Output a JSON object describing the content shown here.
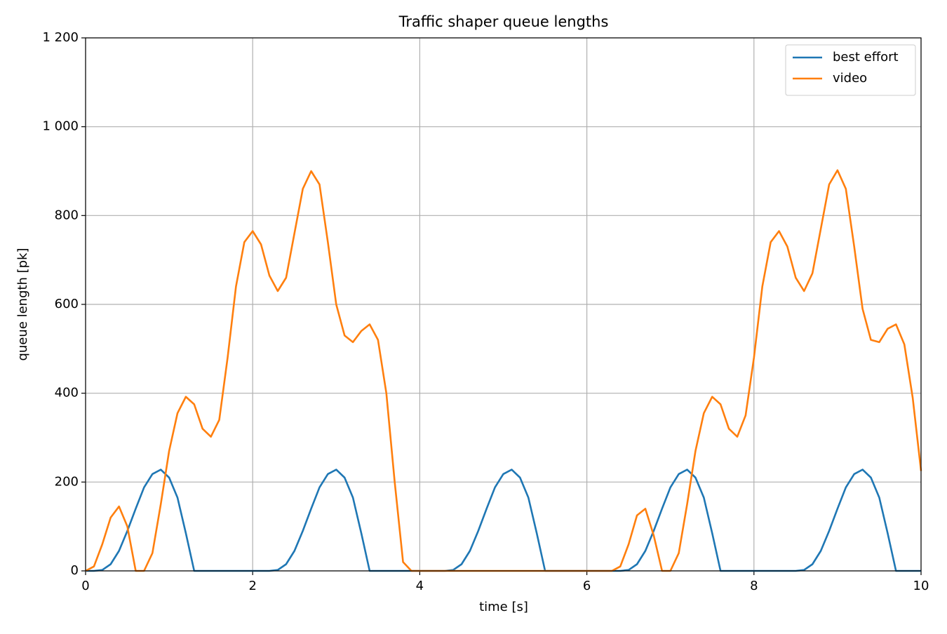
{
  "chart_data": {
    "type": "line",
    "title": "Traffic shaper queue lengths",
    "x_label": "time [s]",
    "y_label": "queue length [pk]",
    "x": [
      0,
      0.1,
      0.2,
      0.3,
      0.4,
      0.5,
      0.6,
      0.7,
      0.8,
      0.9,
      1,
      1.1,
      1.2,
      1.3,
      1.4,
      1.5,
      1.6,
      1.7,
      1.8,
      1.9,
      2,
      2.1,
      2.2,
      2.3,
      2.4,
      2.5,
      2.6,
      2.7,
      2.8,
      2.9,
      3,
      3.1,
      3.2,
      3.3,
      3.4,
      3.5,
      3.6,
      3.7,
      3.8,
      3.9,
      4,
      4.1,
      4.2,
      4.3,
      4.4,
      4.5,
      4.6,
      4.7,
      4.8,
      4.9,
      5,
      5.1,
      5.2,
      5.3,
      5.4,
      5.5,
      5.6,
      5.7,
      5.8,
      5.9,
      6,
      6.1,
      6.2,
      6.3,
      6.4,
      6.5,
      6.6,
      6.7,
      6.8,
      6.9,
      7,
      7.1,
      7.2,
      7.3,
      7.4,
      7.5,
      7.6,
      7.7,
      7.8,
      7.9,
      8,
      8.1,
      8.2,
      8.3,
      8.4,
      8.5,
      8.6,
      8.7,
      8.8,
      8.9,
      9,
      9.1,
      9.2,
      9.3,
      9.4,
      9.5,
      9.6,
      9.7,
      9.8,
      9.9,
      10
    ],
    "series": [
      {
        "name": "best effort",
        "color": "#1f77b4",
        "values": [
          0,
          0,
          2,
          15,
          45,
          90,
          140,
          188,
          218,
          228,
          210,
          165,
          85,
          0,
          0,
          0,
          0,
          0,
          0,
          0,
          0,
          0,
          0,
          2,
          15,
          45,
          90,
          140,
          188,
          218,
          228,
          210,
          165,
          85,
          0,
          0,
          0,
          0,
          0,
          0,
          0,
          0,
          0,
          0,
          2,
          15,
          45,
          90,
          140,
          188,
          218,
          228,
          210,
          165,
          85,
          0,
          0,
          0,
          0,
          0,
          0,
          0,
          0,
          0,
          0,
          2,
          15,
          45,
          90,
          140,
          188,
          218,
          228,
          210,
          165,
          85,
          0,
          0,
          0,
          0,
          0,
          0,
          0,
          0,
          0,
          0,
          2,
          15,
          45,
          90,
          140,
          188,
          218,
          228,
          210,
          165,
          85,
          0,
          0,
          0,
          0
        ]
      },
      {
        "name": "video",
        "color": "#ff7f0e",
        "values": [
          0,
          10,
          60,
          120,
          145,
          100,
          0,
          0,
          40,
          150,
          270,
          355,
          392,
          375,
          320,
          302,
          340,
          480,
          640,
          740,
          765,
          735,
          665,
          630,
          660,
          760,
          860,
          900,
          870,
          740,
          600,
          530,
          515,
          540,
          555,
          520,
          400,
          200,
          20,
          0,
          0,
          0,
          0,
          0,
          0,
          0,
          0,
          0,
          0,
          0,
          0,
          0,
          0,
          0,
          0,
          0,
          0,
          0,
          0,
          0,
          0,
          0,
          0,
          0,
          10,
          60,
          125,
          140,
          80,
          0,
          0,
          40,
          150,
          270,
          355,
          392,
          375,
          320,
          302,
          350,
          480,
          640,
          740,
          765,
          730,
          660,
          630,
          670,
          770,
          870,
          902,
          860,
          730,
          590,
          520,
          515,
          545,
          555,
          510,
          390,
          225
        ]
      }
    ],
    "xlim": [
      0,
      10
    ],
    "xticks": [
      0,
      2,
      4,
      6,
      8,
      10
    ],
    "ylim": [
      0,
      1200
    ],
    "yticks": [
      0,
      200,
      400,
      600,
      800,
      {
        "value": 1000,
        "label": "1 000"
      },
      {
        "value": 1200,
        "label": "1 200"
      }
    ],
    "grid": true,
    "legend": "upper right"
  }
}
